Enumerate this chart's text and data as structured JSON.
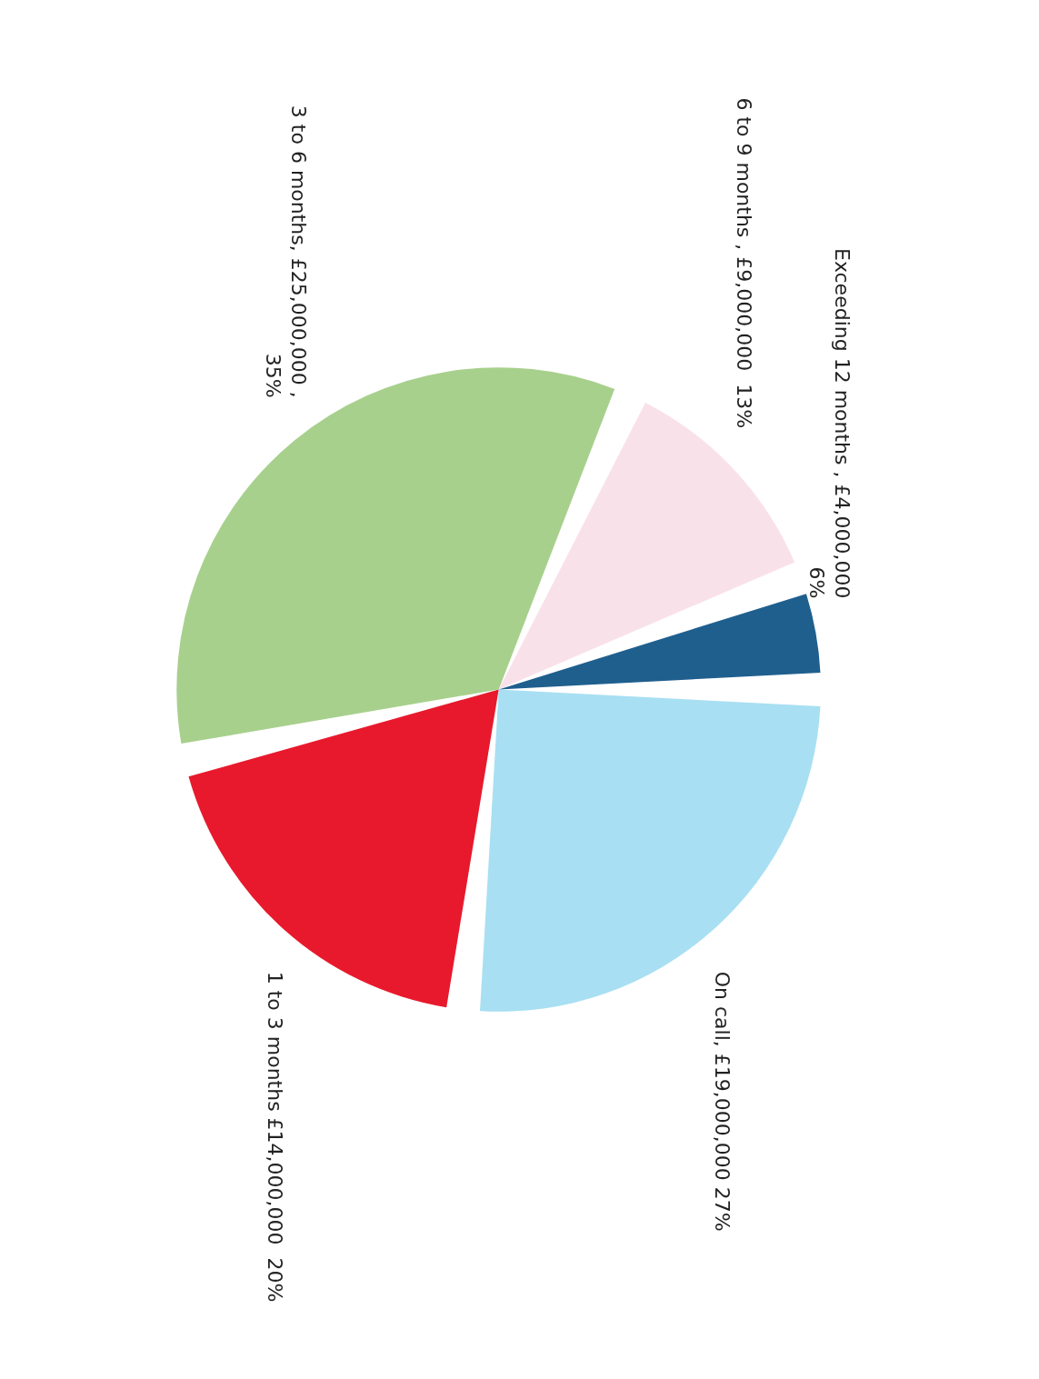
{
  "chart_data": {
    "type": "pie",
    "categories": [
      "On call",
      "1 to 3 months",
      "3 to 6 months",
      "6 to 9 months ",
      "Exceeding 12 months "
    ],
    "values": [
      19000000,
      14000000,
      25000000,
      9000000,
      4000000
    ],
    "value_labels": [
      ", £19,000,000 27%",
      " £14,000,000  20%",
      ", £25,000,000 ,\n35%",
      ", £9,000,000  13%",
      ", £4,000,000\n6%"
    ],
    "colors": [
      "#a8dff3",
      "#e8192c",
      "#a8d08d",
      "#f9e1ea",
      "#1f5f8e"
    ],
    "legend": false
  }
}
